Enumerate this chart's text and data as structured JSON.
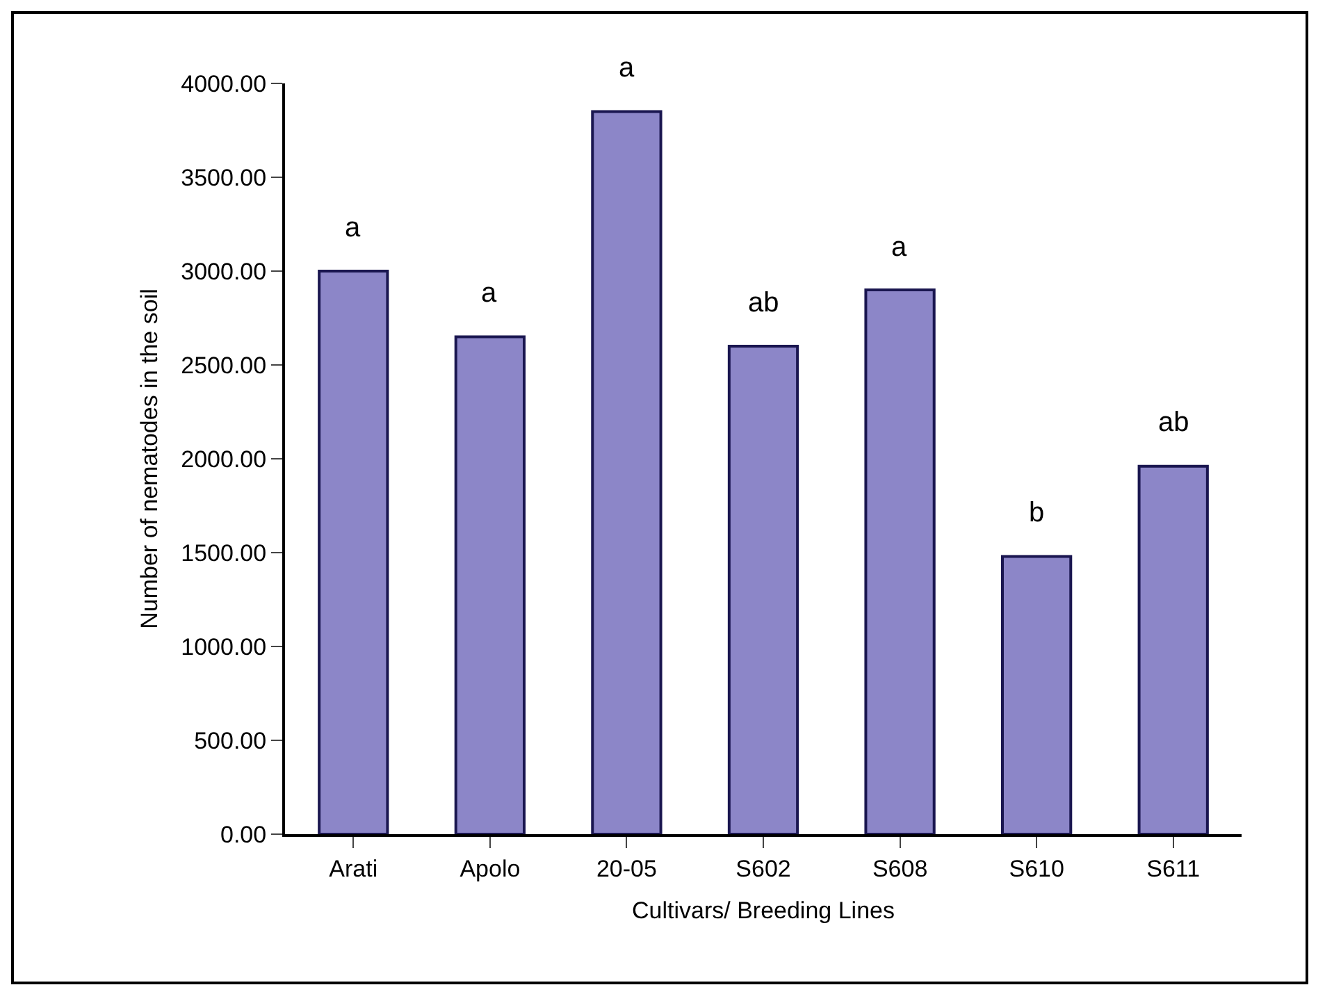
{
  "chart_data": {
    "type": "bar",
    "xlabel": "Cultivars/ Breeding Lines",
    "ylabel": "Number of nematodes in the soil",
    "categories": [
      "Arati",
      "Apolo",
      "20-05",
      "S602",
      "S608",
      "S610",
      "S611"
    ],
    "values": [
      3000,
      2650,
      3850,
      2600,
      2900,
      1480,
      1960
    ],
    "color": "#8c86c8",
    "ylim": [
      0,
      4000
    ],
    "yticks": [
      {
        "value": 0,
        "label": "0.00"
      },
      {
        "value": 500,
        "label": "500.00"
      },
      {
        "value": 1000,
        "label": "1000.00"
      },
      {
        "value": 1500,
        "label": "1500.00"
      },
      {
        "value": 2000,
        "label": "2000.00"
      },
      {
        "value": 2500,
        "label": "2500.00"
      },
      {
        "value": 3000,
        "label": "3000.00"
      },
      {
        "value": 3500,
        "label": "3500.00"
      },
      {
        "value": 4000,
        "label": "4000.00"
      }
    ],
    "grid": false,
    "annotations": [
      {
        "text": "a",
        "x": "Arati",
        "y": 3000
      },
      {
        "text": "a",
        "x": "Apolo",
        "y": 2650
      },
      {
        "text": "a",
        "x": "20-05",
        "y": 3850
      },
      {
        "text": "ab",
        "x": "S602",
        "y": 2600
      },
      {
        "text": "a",
        "x": "S608",
        "y": 2900
      },
      {
        "text": "b",
        "x": "S610",
        "y": 1480
      },
      {
        "text": "ab",
        "x": "S611",
        "y": 1960
      }
    ]
  }
}
